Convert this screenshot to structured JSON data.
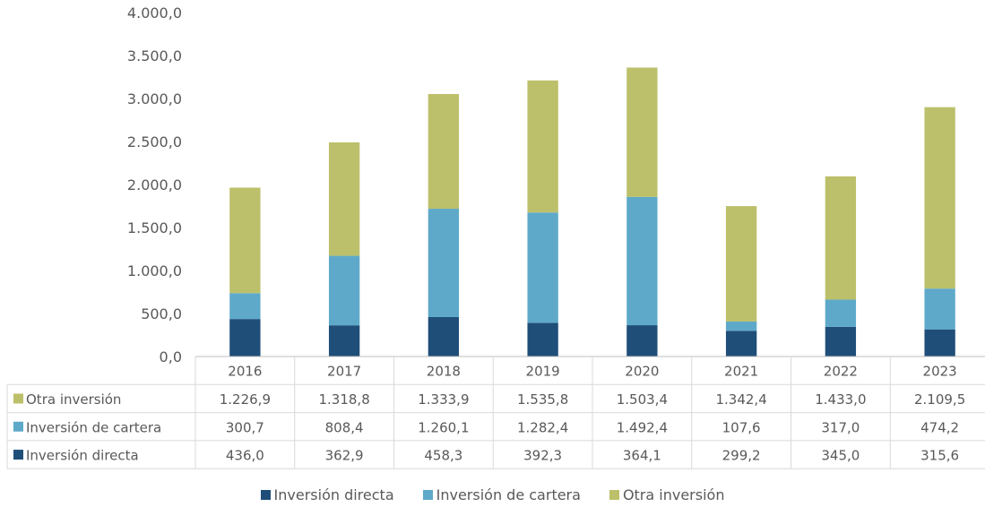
{
  "chart_data": {
    "type": "bar",
    "stacked": true,
    "categories": [
      "2016",
      "2017",
      "2018",
      "2019",
      "2020",
      "2021",
      "2022",
      "2023"
    ],
    "series": [
      {
        "name": "Inversión directa",
        "color": "#1f4e79",
        "values": [
          436.0,
          362.9,
          458.3,
          392.3,
          364.1,
          299.2,
          345.0,
          315.6
        ],
        "labels": [
          "436,0",
          "362,9",
          "458,3",
          "392,3",
          "364,1",
          "299,2",
          "345,0",
          "315,6"
        ]
      },
      {
        "name": "Inversión de cartera",
        "color": "#5ea9c9",
        "values": [
          300.7,
          808.4,
          1260.1,
          1282.4,
          1492.4,
          107.6,
          317.0,
          474.2
        ],
        "labels": [
          "300,7",
          "808,4",
          "1.260,1",
          "1.282,4",
          "1.492,4",
          "107,6",
          "317,0",
          "474,2"
        ]
      },
      {
        "name": "Otra inversión",
        "color": "#bcc06a",
        "values": [
          1226.9,
          1318.8,
          1333.9,
          1535.8,
          1503.4,
          1342.4,
          1433.0,
          2109.5
        ],
        "labels": [
          "1.226,9",
          "1.318,8",
          "1.333,9",
          "1.535,8",
          "1.503,4",
          "1.342,4",
          "1.433,0",
          "2.109,5"
        ]
      }
    ],
    "ylim": [
      0,
      4000
    ],
    "yticks": [
      0,
      500,
      1000,
      1500,
      2000,
      2500,
      3000,
      3500,
      4000
    ],
    "ytick_labels": [
      "0,0",
      "500,0",
      "1.000,0",
      "1.500,0",
      "2.000,0",
      "2.500,0",
      "3.000,0",
      "3.500,0",
      "4.000,0"
    ],
    "title": "",
    "xlabel": "",
    "ylabel": "",
    "grid": false,
    "legend_position": "bottom",
    "data_table": true
  }
}
